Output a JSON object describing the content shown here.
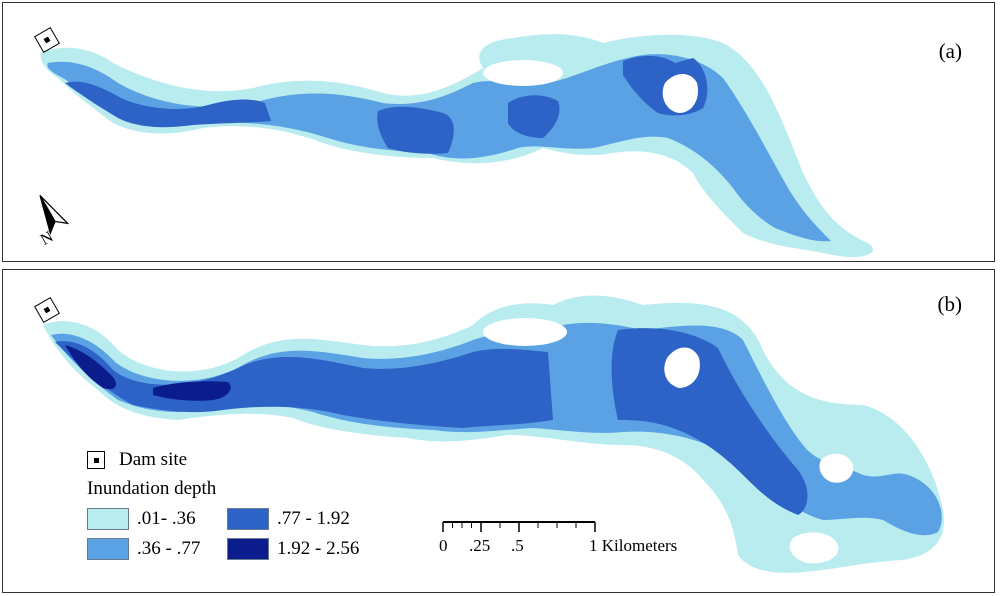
{
  "panels": {
    "a": {
      "label": "(a)"
    },
    "b": {
      "label": "(b)"
    }
  },
  "legend": {
    "dam_label": "Dam site",
    "title": "Inundation depth",
    "classes": [
      {
        "label": ".01- .36",
        "color": "#b9ecef"
      },
      {
        "label": ".77 - 1.92",
        "color": "#2d62c6"
      },
      {
        "label": ".36 - .77",
        "color": "#5ba2e4"
      },
      {
        "label": "1.92 - 2.56",
        "color": "#0b1c8c"
      }
    ]
  },
  "scale_bar": {
    "labels": [
      "0",
      ".25",
      ".5",
      "1 Kilometers"
    ]
  },
  "north_arrow": {
    "label": "N"
  }
}
